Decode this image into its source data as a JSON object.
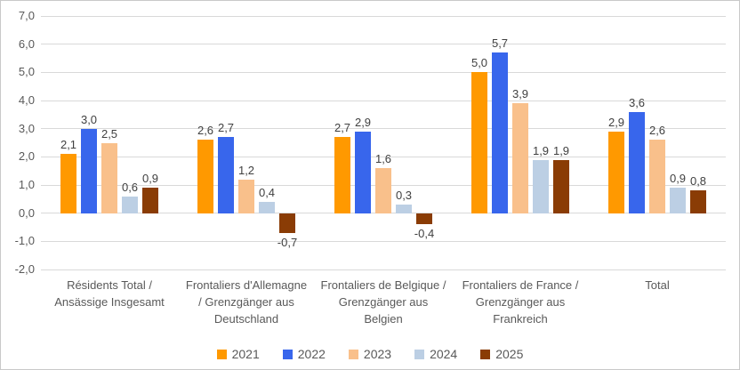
{
  "chart_data": {
    "type": "bar",
    "title": "",
    "categories": [
      "Résidents Total / Ansässige Insgesamt",
      "Frontaliers d'Allemagne / Grenzgänger aus Deutschland",
      "Frontaliers de Belgique / Grenzgänger aus Belgien",
      "Frontaliers de France / Grenzgänger aus Frankreich",
      "Total"
    ],
    "series": [
      {
        "name": "2021",
        "color": "#FF9900",
        "values": [
          2.1,
          2.6,
          2.7,
          5.0,
          2.9
        ]
      },
      {
        "name": "2022",
        "color": "#3866EC",
        "values": [
          3.0,
          2.7,
          2.9,
          5.7,
          3.6
        ]
      },
      {
        "name": "2023",
        "color": "#F9C08B",
        "values": [
          2.5,
          1.2,
          1.6,
          3.9,
          2.6
        ]
      },
      {
        "name": "2024",
        "color": "#BCCFE4",
        "values": [
          0.6,
          0.4,
          0.3,
          1.9,
          0.9
        ]
      },
      {
        "name": "2025",
        "color": "#8A3C05",
        "values": [
          0.9,
          -0.7,
          -0.4,
          1.9,
          0.8
        ]
      }
    ],
    "ylim": [
      -2,
      7
    ],
    "ytick_step": 1,
    "ytick_labels": [
      "7,0",
      "6,0",
      "5,0",
      "4,0",
      "3,0",
      "2,0",
      "1,0",
      "0,0",
      "-1,0",
      "-2,0"
    ],
    "decimal_separator": ",",
    "grid": true,
    "legend_position": "bottom",
    "colors": {
      "gridline": "#d9d9d9",
      "axis_text": "#595959",
      "value_label_text": "#404040",
      "frame_border": "#c9c9c9",
      "background": "#ffffff"
    }
  }
}
